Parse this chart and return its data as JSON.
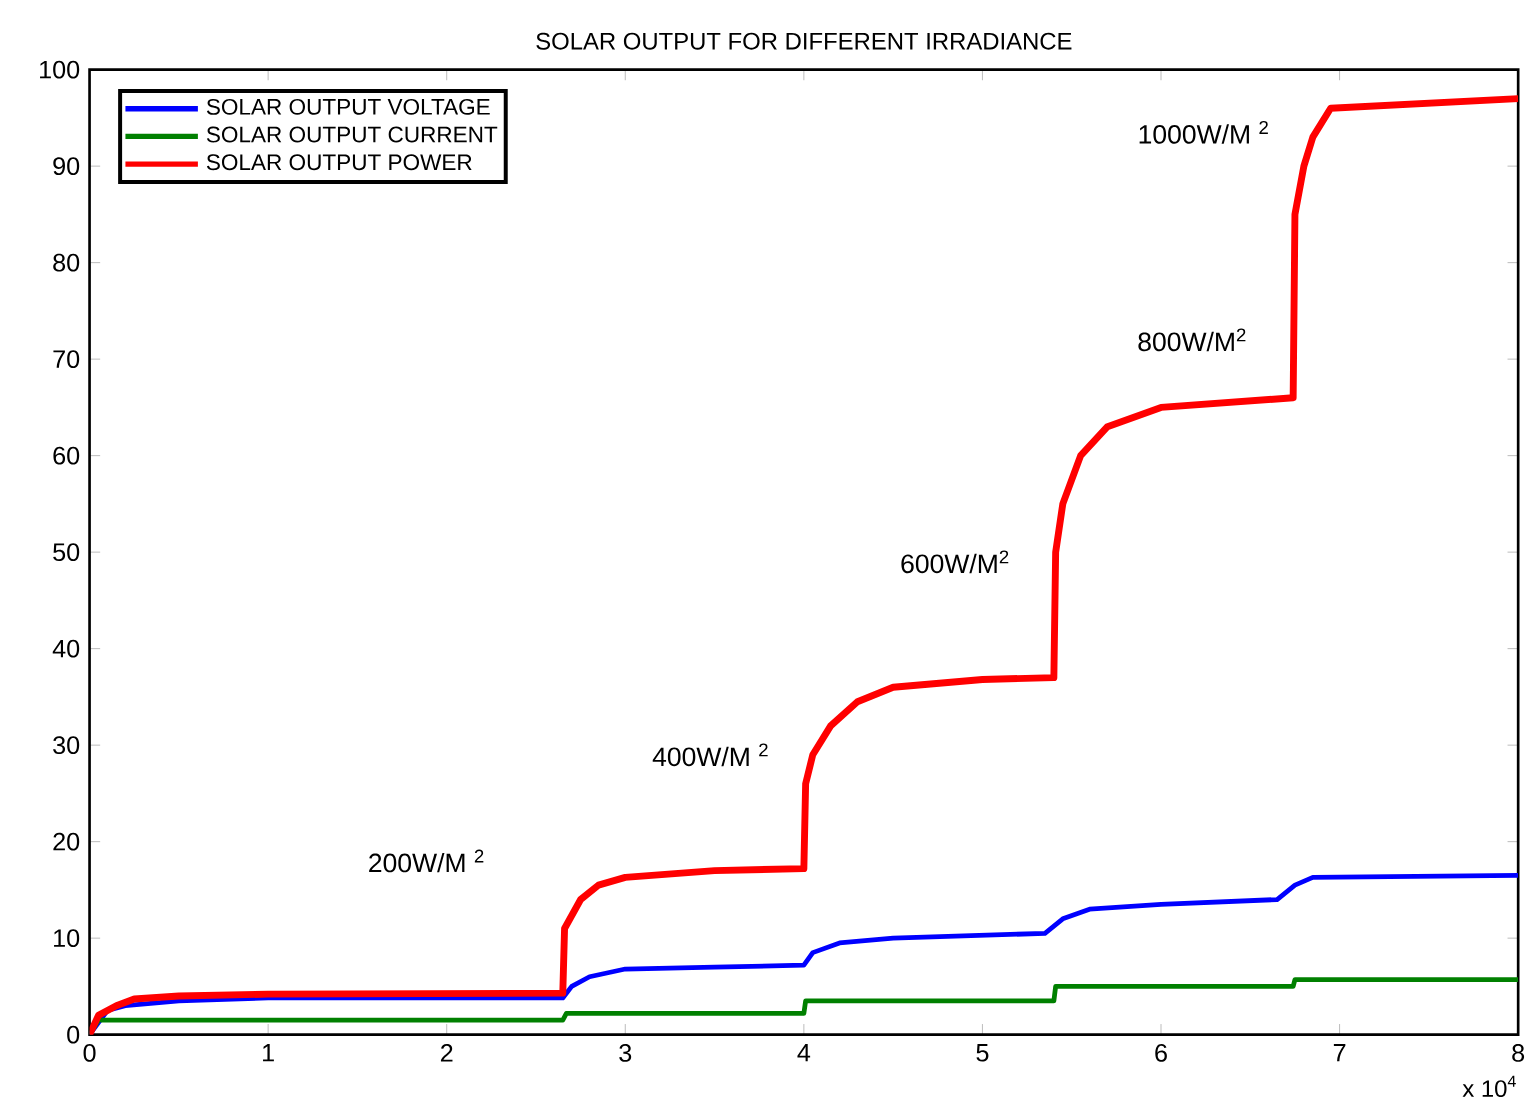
{
  "chart_data": {
    "type": "line",
    "title": "SOLAR OUTPUT FOR DIFFERENT IRRADIANCE",
    "xlim": [
      0,
      8
    ],
    "ylim": [
      0,
      100
    ],
    "xticks": [
      0,
      1,
      2,
      3,
      4,
      5,
      6,
      7,
      8
    ],
    "yticks": [
      0,
      10,
      20,
      30,
      40,
      50,
      60,
      70,
      80,
      90,
      100
    ],
    "grid": false,
    "legend": "top left",
    "series": [
      {
        "name": "SOLAR OUTPUT VOLTAGE",
        "color": "#0000ff",
        "x": [
          0,
          0.1,
          0.2,
          0.5,
          1,
          2.65,
          2.7,
          2.8,
          3,
          3.5,
          4,
          4.05,
          4.2,
          4.5,
          5.35,
          5.45,
          5.6,
          6,
          6.65,
          6.75,
          6.85,
          8
        ],
        "values": [
          0,
          2.5,
          3,
          3.5,
          3.8,
          3.8,
          5,
          6,
          6.8,
          7,
          7.2,
          8.5,
          9.5,
          10,
          10.5,
          12,
          13,
          13.5,
          14,
          15.5,
          16.3,
          16.5
        ]
      },
      {
        "name": "SOLAR OUTPUT CURRENT",
        "color": "#008000",
        "x": [
          0,
          0.05,
          2.65,
          2.67,
          4,
          4.01,
          5.4,
          5.41,
          6.74,
          6.75,
          8
        ],
        "values": [
          0,
          1.5,
          1.5,
          2.2,
          2.2,
          3.5,
          3.5,
          5,
          5,
          5.7,
          5.7
        ]
      },
      {
        "name": "SOLAR OUTPUT POWER",
        "color": "#ff0000",
        "x": [
          0,
          0.05,
          0.15,
          0.25,
          0.5,
          1,
          2.65,
          2.66,
          2.75,
          2.85,
          3,
          3.5,
          4,
          4.01,
          4.05,
          4.15,
          4.3,
          4.5,
          5,
          5.4,
          5.41,
          5.45,
          5.55,
          5.7,
          6,
          6.74,
          6.75,
          6.8,
          6.85,
          6.95,
          8
        ],
        "values": [
          0,
          2,
          3,
          3.7,
          4,
          4.2,
          4.3,
          11,
          14,
          15.5,
          16.3,
          17,
          17.2,
          26,
          29,
          32,
          34.5,
          36,
          36.8,
          37,
          50,
          55,
          60,
          63,
          65,
          66,
          85,
          90,
          93,
          96,
          97
        ]
      }
    ],
    "annotations": [
      "200W/M $^{2}$",
      "400W/M $^{2}$",
      "600W/M$^{2}$",
      "800W/M$^{2}$",
      "1000W/M $^{2}$",
      "x 10$^{4}$"
    ]
  }
}
